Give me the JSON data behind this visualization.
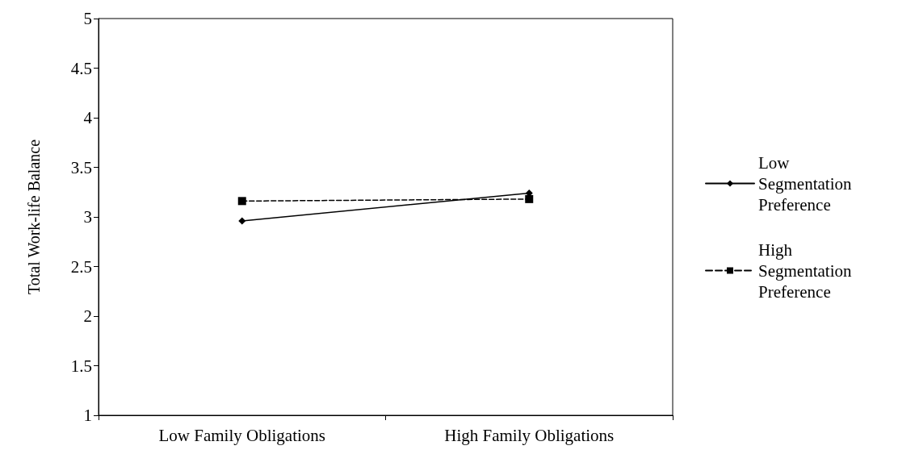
{
  "chart_data": {
    "type": "line",
    "ylabel": "Total Work-life Balance",
    "categories": [
      "Low Family Obligations",
      "High Family Obligations"
    ],
    "series": [
      {
        "name": "Low Segmentation Preference",
        "color": "#000000",
        "values": [
          2.96,
          3.24
        ],
        "marker": "diamond",
        "line_style": "solid"
      },
      {
        "name": "High Segmentation Preference",
        "color": "#000000",
        "values": [
          3.16,
          3.18
        ],
        "marker": "square",
        "line_style": "dashed"
      }
    ],
    "ylim": [
      1,
      5
    ],
    "yticks": [
      1,
      1.5,
      2,
      2.5,
      3,
      3.5,
      4,
      4.5,
      5
    ],
    "grid": false,
    "legend": "right"
  }
}
